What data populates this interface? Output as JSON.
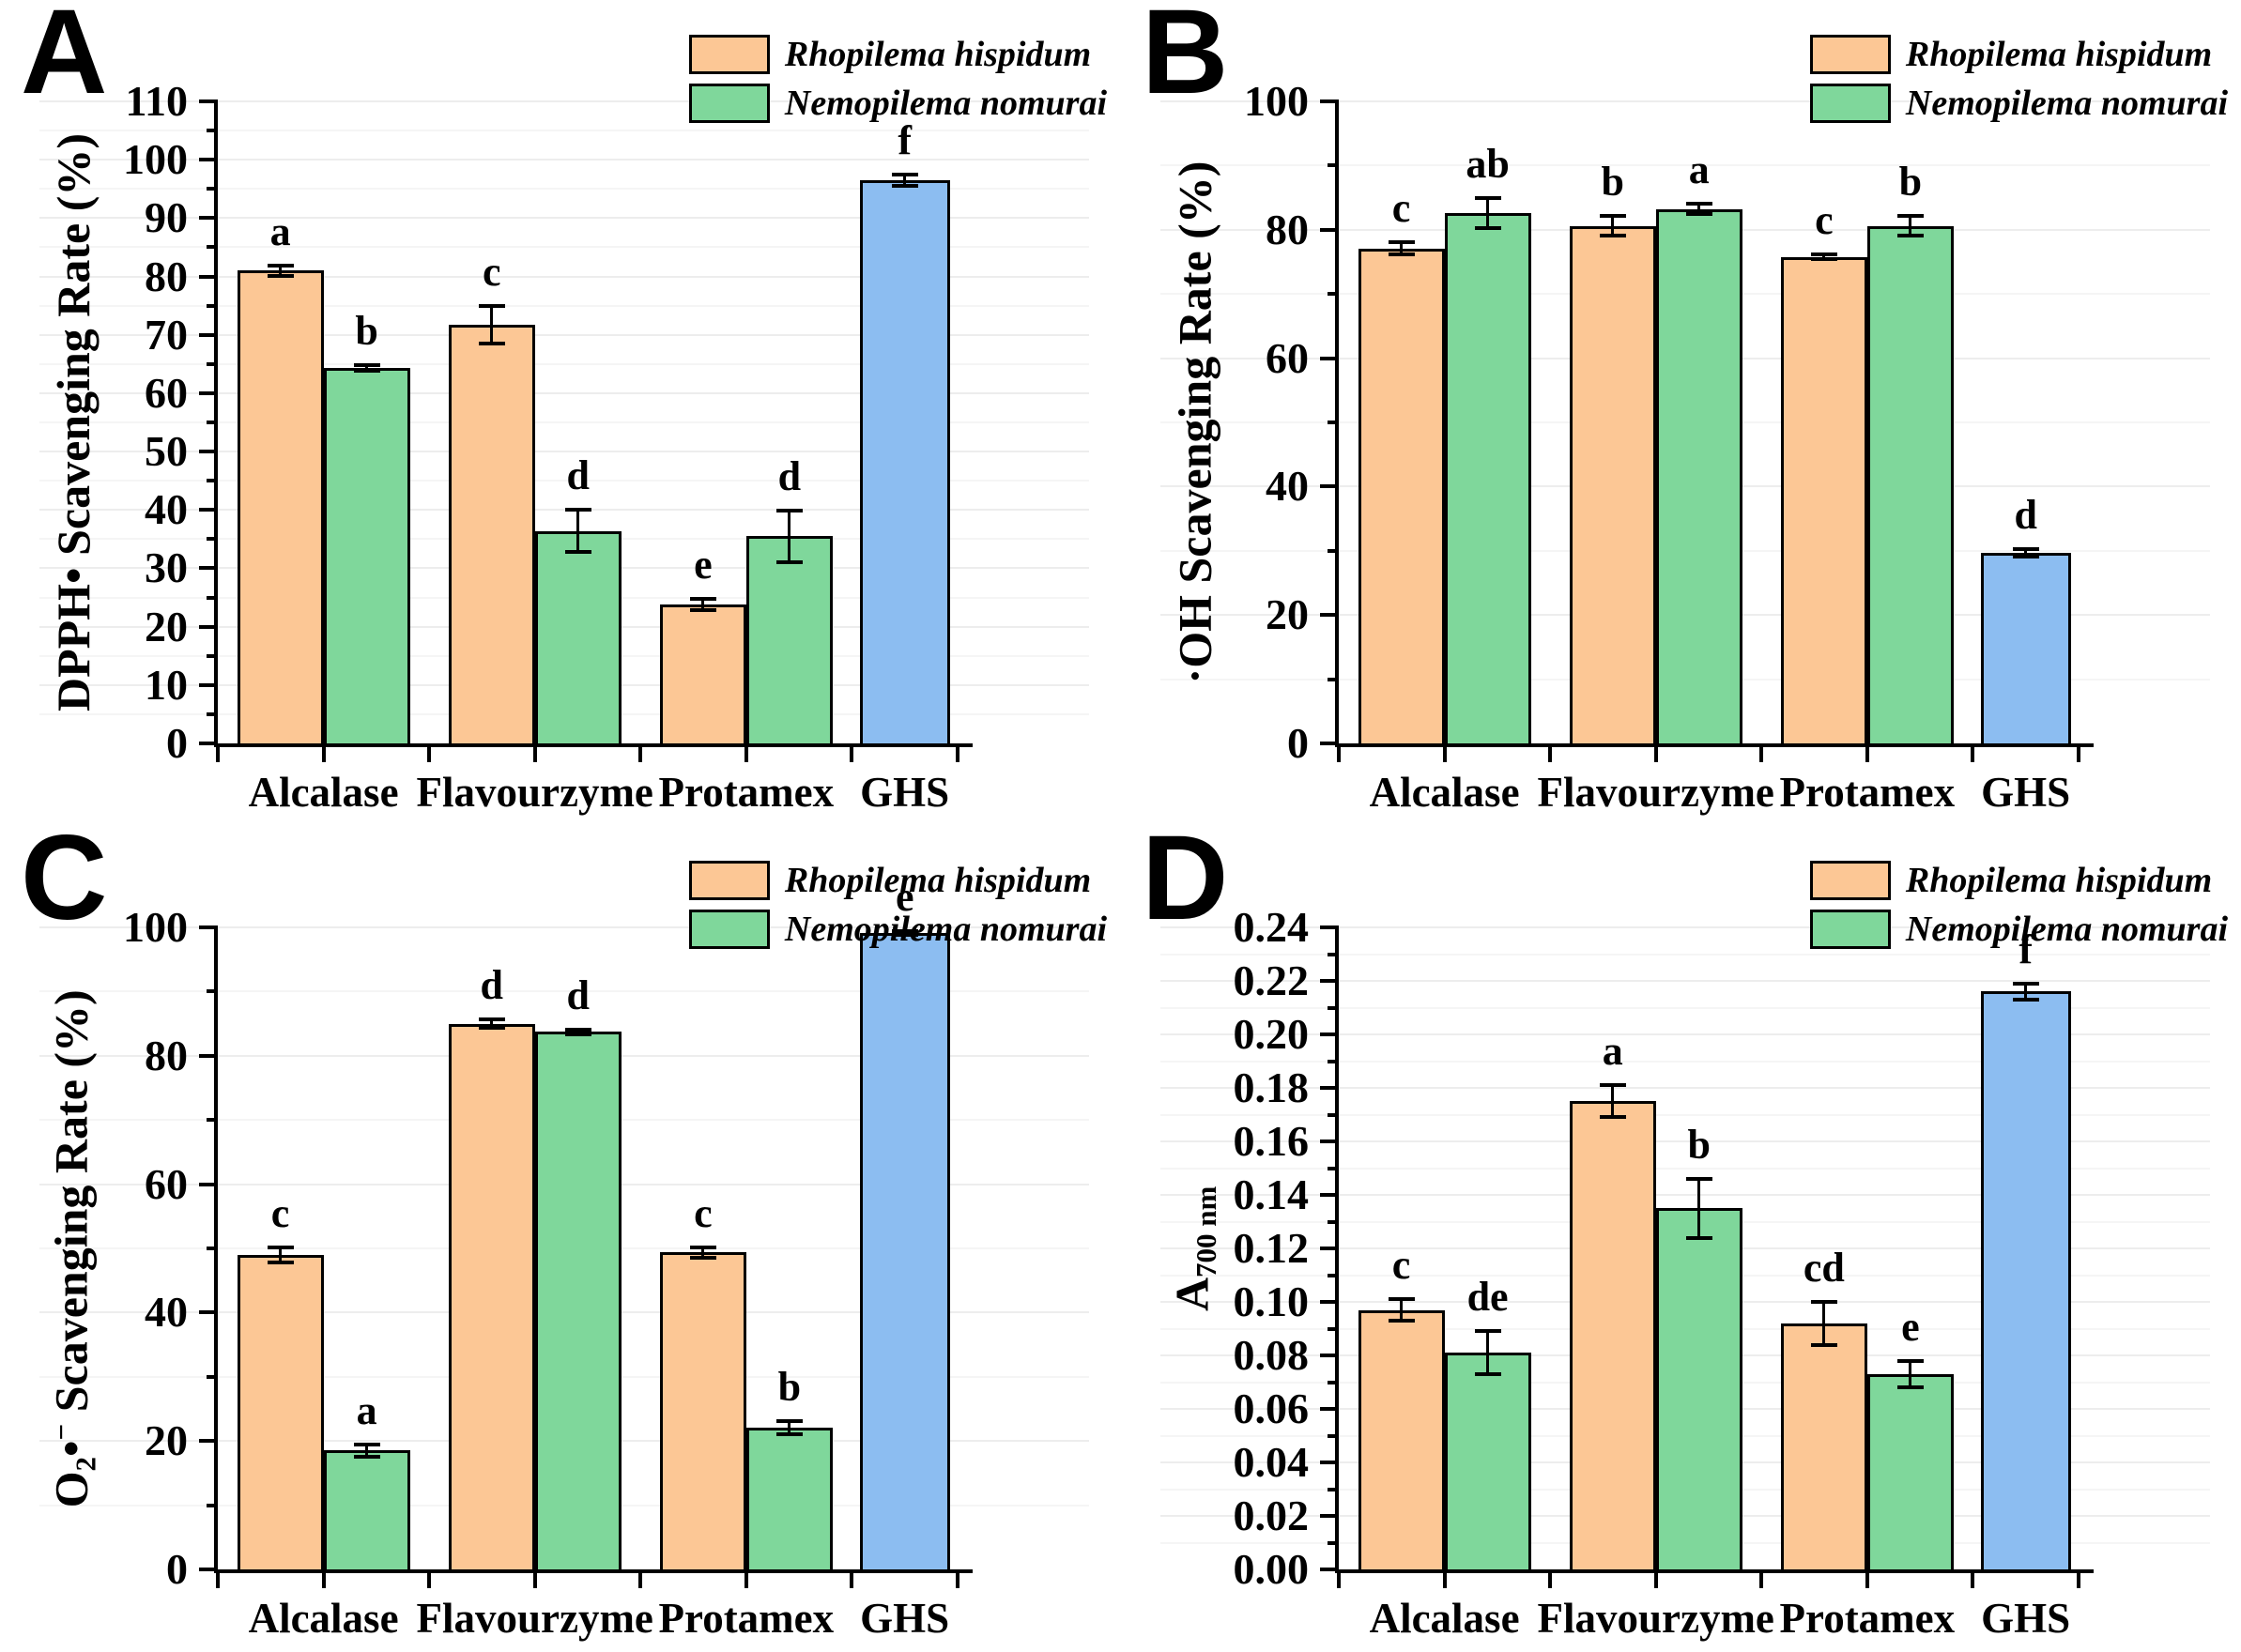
{
  "figure": {
    "palette": {
      "rhopilema": "#FCC795",
      "nemopilema": "#7FD79B",
      "ghs": "#8CBDF1",
      "axis": "#000000",
      "gridline": "#EDEDED"
    },
    "legend": {
      "position": "top-right",
      "series": [
        {
          "label": "Rhopilema hispidum",
          "color_key": "rhopilema"
        },
        {
          "label": "Nemopilema nomurai",
          "color_key": "nemopilema"
        }
      ]
    }
  },
  "chart_data": [
    {
      "panel": "A",
      "type": "bar",
      "title": "",
      "xlabel": "",
      "ylabel_segments": [
        [
          "n",
          "DPPH• Scavenging Rate (%)"
        ]
      ],
      "ylim": [
        0,
        110
      ],
      "ytick_values": [
        0,
        10,
        20,
        30,
        40,
        50,
        60,
        70,
        80,
        90,
        100,
        110
      ],
      "ytick_labels": [
        "0",
        "10",
        "20",
        "30",
        "40",
        "50",
        "60",
        "70",
        "80",
        "90",
        "100",
        "110"
      ],
      "grid": true,
      "legend_position": "top-right",
      "categories": [
        "Alcalase",
        "Flavourzyme",
        "Protamex",
        "GHS"
      ],
      "groups": [
        {
          "category": "Alcalase",
          "bars": [
            {
              "series": "Rhopilema hispidum",
              "color": "rhopilema",
              "value": 81.0,
              "error": 0.9,
              "letter": "a"
            },
            {
              "series": "Nemopilema nomurai",
              "color": "nemopilema",
              "value": 64.3,
              "error": 0.5,
              "letter": "b"
            }
          ]
        },
        {
          "category": "Flavourzyme",
          "bars": [
            {
              "series": "Rhopilema hispidum",
              "color": "rhopilema",
              "value": 71.7,
              "error": 3.2,
              "letter": "c"
            },
            {
              "series": "Nemopilema nomurai",
              "color": "nemopilema",
              "value": 36.4,
              "error": 3.6,
              "letter": "d"
            }
          ]
        },
        {
          "category": "Protamex",
          "bars": [
            {
              "series": "Rhopilema hispidum",
              "color": "rhopilema",
              "value": 23.8,
              "error": 1.0,
              "letter": "e"
            },
            {
              "series": "Nemopilema nomurai",
              "color": "nemopilema",
              "value": 35.5,
              "error": 4.4,
              "letter": "d"
            }
          ]
        },
        {
          "category": "GHS",
          "bars": [
            {
              "series": "GHS",
              "color": "ghs",
              "value": 96.5,
              "error": 1.0,
              "letter": "f"
            }
          ]
        }
      ]
    },
    {
      "panel": "B",
      "type": "bar",
      "title": "",
      "xlabel": "",
      "ylabel_segments": [
        [
          "n",
          "·OH Scavenging Rate (%)"
        ]
      ],
      "ylim": [
        0,
        100
      ],
      "ytick_values": [
        0,
        20,
        40,
        60,
        80,
        100
      ],
      "ytick_labels": [
        "0",
        "20",
        "40",
        "60",
        "80",
        "100"
      ],
      "grid": true,
      "legend_position": "top-right",
      "categories": [
        "Alcalase",
        "Flavourzyme",
        "Protamex",
        "GHS"
      ],
      "groups": [
        {
          "category": "Alcalase",
          "bars": [
            {
              "series": "Rhopilema hispidum",
              "color": "rhopilema",
              "value": 77.1,
              "error": 1.0,
              "letter": "c"
            },
            {
              "series": "Nemopilema nomurai",
              "color": "nemopilema",
              "value": 82.6,
              "error": 2.4,
              "letter": "ab"
            }
          ]
        },
        {
          "category": "Flavourzyme",
          "bars": [
            {
              "series": "Rhopilema hispidum",
              "color": "rhopilema",
              "value": 80.6,
              "error": 1.5,
              "letter": "b"
            },
            {
              "series": "Nemopilema nomurai",
              "color": "nemopilema",
              "value": 83.2,
              "error": 0.8,
              "letter": "a"
            }
          ]
        },
        {
          "category": "Protamex",
          "bars": [
            {
              "series": "Rhopilema hispidum",
              "color": "rhopilema",
              "value": 75.8,
              "error": 0.4,
              "letter": "c"
            },
            {
              "series": "Nemopilema nomurai",
              "color": "nemopilema",
              "value": 80.6,
              "error": 1.5,
              "letter": "b"
            }
          ]
        },
        {
          "category": "GHS",
          "bars": [
            {
              "series": "GHS",
              "color": "ghs",
              "value": 29.7,
              "error": 0.6,
              "letter": "d"
            }
          ]
        }
      ]
    },
    {
      "panel": "C",
      "type": "bar",
      "title": "",
      "xlabel": "",
      "ylabel_segments": [
        [
          "n",
          "O"
        ],
        [
          "sub",
          "2"
        ],
        [
          "n",
          "•"
        ],
        [
          "sup",
          "−"
        ],
        [
          "n",
          " Scavenging Rate (%)"
        ]
      ],
      "ylim": [
        0,
        100
      ],
      "ytick_values": [
        0,
        20,
        40,
        60,
        80,
        100
      ],
      "ytick_labels": [
        "0",
        "20",
        "40",
        "60",
        "80",
        "100"
      ],
      "grid": true,
      "legend_position": "top-right",
      "categories": [
        "Alcalase",
        "Flavourzyme",
        "Protamex",
        "GHS"
      ],
      "groups": [
        {
          "category": "Alcalase",
          "bars": [
            {
              "series": "Rhopilema hispidum",
              "color": "rhopilema",
              "value": 49.0,
              "error": 1.2,
              "letter": "c"
            },
            {
              "series": "Nemopilema nomurai",
              "color": "nemopilema",
              "value": 18.5,
              "error": 0.9,
              "letter": "a"
            }
          ]
        },
        {
          "category": "Flavourzyme",
          "bars": [
            {
              "series": "Rhopilema hispidum",
              "color": "rhopilema",
              "value": 85.0,
              "error": 0.7,
              "letter": "d"
            },
            {
              "series": "Nemopilema nomurai",
              "color": "nemopilema",
              "value": 83.7,
              "error": 0.3,
              "letter": "d"
            }
          ]
        },
        {
          "category": "Protamex",
          "bars": [
            {
              "series": "Rhopilema hispidum",
              "color": "rhopilema",
              "value": 49.4,
              "error": 0.8,
              "letter": "c"
            },
            {
              "series": "Nemopilema nomurai",
              "color": "nemopilema",
              "value": 22.1,
              "error": 1.0,
              "letter": "b"
            }
          ]
        },
        {
          "category": "GHS",
          "bars": [
            {
              "series": "GHS",
              "color": "ghs",
              "value": 99.1,
              "error": 0.3,
              "letter": "e"
            }
          ]
        }
      ]
    },
    {
      "panel": "D",
      "type": "bar",
      "title": "",
      "xlabel": "",
      "ylabel_segments": [
        [
          "n",
          "A"
        ],
        [
          "sub",
          "700 nm"
        ]
      ],
      "ylim": [
        0,
        0.24
      ],
      "ytick_values": [
        0,
        0.02,
        0.04,
        0.06,
        0.08,
        0.1,
        0.12,
        0.14,
        0.16,
        0.18,
        0.2,
        0.22,
        0.24
      ],
      "ytick_labels": [
        "0.00",
        "0.02",
        "0.04",
        "0.06",
        "0.08",
        "0.10",
        "0.12",
        "0.14",
        "0.16",
        "0.18",
        "0.20",
        "0.22",
        "0.24"
      ],
      "grid": true,
      "legend_position": "top-right",
      "categories": [
        "Alcalase",
        "Flavourzyme",
        "Protamex",
        "GHS"
      ],
      "groups": [
        {
          "category": "Alcalase",
          "bars": [
            {
              "series": "Rhopilema hispidum",
              "color": "rhopilema",
              "value": 0.097,
              "error": 0.004,
              "letter": "c"
            },
            {
              "series": "Nemopilema nomurai",
              "color": "nemopilema",
              "value": 0.081,
              "error": 0.008,
              "letter": "de"
            }
          ]
        },
        {
          "category": "Flavourzyme",
          "bars": [
            {
              "series": "Rhopilema hispidum",
              "color": "rhopilema",
              "value": 0.175,
              "error": 0.006,
              "letter": "a"
            },
            {
              "series": "Nemopilema nomurai",
              "color": "nemopilema",
              "value": 0.135,
              "error": 0.011,
              "letter": "b"
            }
          ]
        },
        {
          "category": "Protamex",
          "bars": [
            {
              "series": "Rhopilema hispidum",
              "color": "rhopilema",
              "value": 0.092,
              "error": 0.008,
              "letter": "cd"
            },
            {
              "series": "Nemopilema nomurai",
              "color": "nemopilema",
              "value": 0.073,
              "error": 0.005,
              "letter": "e"
            }
          ]
        },
        {
          "category": "GHS",
          "bars": [
            {
              "series": "GHS",
              "color": "ghs",
              "value": 0.216,
              "error": 0.003,
              "letter": "f"
            }
          ]
        }
      ]
    }
  ]
}
